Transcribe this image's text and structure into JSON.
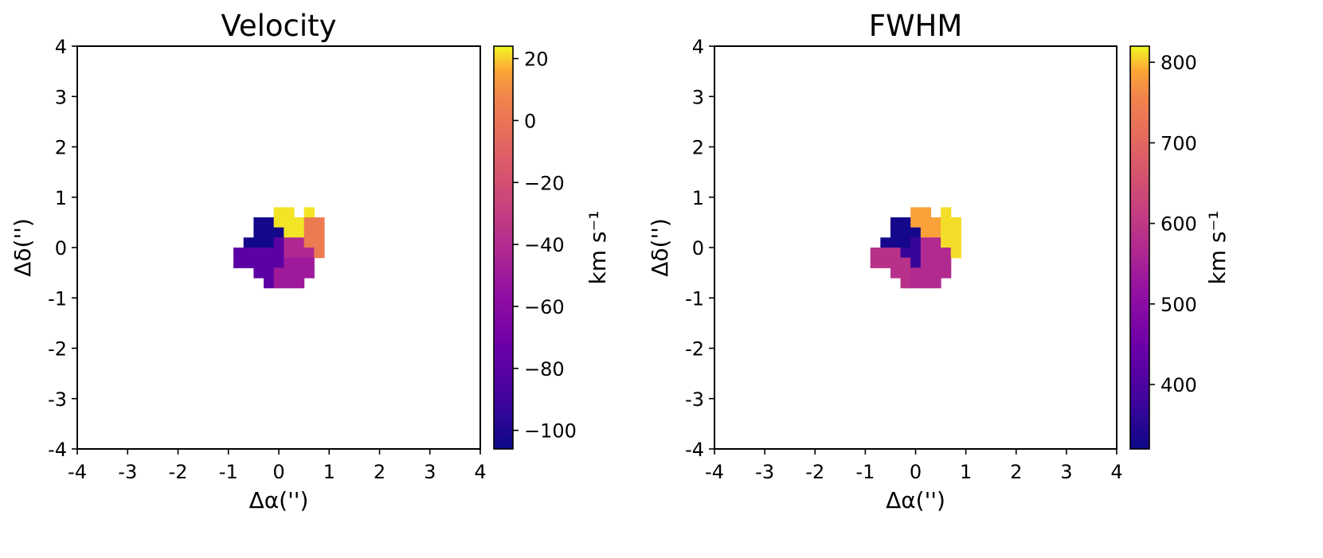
{
  "chart_data": [
    {
      "type": "heatmap",
      "title": "Velocity",
      "xlabel": "Δα('')",
      "ylabel": "Δδ('')",
      "xlim": [
        -4,
        4
      ],
      "ylim": [
        -4,
        4
      ],
      "xticks": [
        "-4",
        "-3",
        "-2",
        "-1",
        "0",
        "1",
        "2",
        "3",
        "4"
      ],
      "yticks": [
        "-4",
        "-3",
        "-2",
        "-1",
        "0",
        "1",
        "2",
        "3",
        "4"
      ],
      "pixel_size": 0.2,
      "colormap": "plasma",
      "colorbar": {
        "label": "km s⁻¹",
        "range": [
          -106,
          24
        ],
        "ticks": [
          "−100",
          "−80",
          "−60",
          "−40",
          "−20",
          "0",
          "20"
        ],
        "tick_values": [
          -100,
          -80,
          -60,
          -40,
          -20,
          0,
          20
        ]
      },
      "cells": [
        {
          "x": 0,
          "y": 0.7,
          "v": 22
        },
        {
          "x": 0.2,
          "y": 0.7,
          "v": 22
        },
        {
          "x": 0.6,
          "y": 0.7,
          "v": 22
        },
        {
          "x": -0.4,
          "y": 0.5,
          "v": -104
        },
        {
          "x": -0.2,
          "y": 0.5,
          "v": -104
        },
        {
          "x": 0,
          "y": 0.5,
          "v": 22
        },
        {
          "x": 0.2,
          "y": 0.5,
          "v": 22
        },
        {
          "x": 0.4,
          "y": 0.5,
          "v": 22
        },
        {
          "x": 0.6,
          "y": 0.5,
          "v": 3
        },
        {
          "x": 0.8,
          "y": 0.5,
          "v": 3
        },
        {
          "x": -0.4,
          "y": 0.3,
          "v": -104
        },
        {
          "x": -0.2,
          "y": 0.3,
          "v": -104
        },
        {
          "x": 0,
          "y": 0.3,
          "v": -104
        },
        {
          "x": 0.2,
          "y": 0.3,
          "v": 22
        },
        {
          "x": 0.4,
          "y": 0.3,
          "v": 22
        },
        {
          "x": 0.6,
          "y": 0.3,
          "v": 3
        },
        {
          "x": 0.8,
          "y": 0.3,
          "v": 3
        },
        {
          "x": -0.6,
          "y": 0.1,
          "v": -104
        },
        {
          "x": -0.4,
          "y": 0.1,
          "v": -104
        },
        {
          "x": -0.2,
          "y": 0.1,
          "v": -104
        },
        {
          "x": 0,
          "y": 0.1,
          "v": -79
        },
        {
          "x": 0.2,
          "y": 0.1,
          "v": -42
        },
        {
          "x": 0.4,
          "y": 0.1,
          "v": -42
        },
        {
          "x": 0.6,
          "y": 0.1,
          "v": 3
        },
        {
          "x": 0.8,
          "y": 0.1,
          "v": 3
        },
        {
          "x": -0.8,
          "y": -0.1,
          "v": -79
        },
        {
          "x": -0.6,
          "y": -0.1,
          "v": -79
        },
        {
          "x": -0.4,
          "y": -0.1,
          "v": -79
        },
        {
          "x": -0.2,
          "y": -0.1,
          "v": -79
        },
        {
          "x": 0,
          "y": -0.1,
          "v": -79
        },
        {
          "x": 0.2,
          "y": -0.1,
          "v": -42
        },
        {
          "x": 0.4,
          "y": -0.1,
          "v": -42
        },
        {
          "x": 0.6,
          "y": -0.1,
          "v": -42
        },
        {
          "x": 0.8,
          "y": -0.1,
          "v": 3
        },
        {
          "x": -0.8,
          "y": -0.3,
          "v": -79
        },
        {
          "x": -0.6,
          "y": -0.3,
          "v": -79
        },
        {
          "x": -0.4,
          "y": -0.3,
          "v": -79
        },
        {
          "x": -0.2,
          "y": -0.3,
          "v": -79
        },
        {
          "x": 0,
          "y": -0.3,
          "v": -79
        },
        {
          "x": 0.2,
          "y": -0.3,
          "v": -50
        },
        {
          "x": 0.4,
          "y": -0.3,
          "v": -50
        },
        {
          "x": 0.6,
          "y": -0.3,
          "v": -50
        },
        {
          "x": -0.4,
          "y": -0.5,
          "v": -79
        },
        {
          "x": -0.2,
          "y": -0.5,
          "v": -79
        },
        {
          "x": 0,
          "y": -0.5,
          "v": -50
        },
        {
          "x": 0.2,
          "y": -0.5,
          "v": -50
        },
        {
          "x": 0.4,
          "y": -0.5,
          "v": -50
        },
        {
          "x": 0.6,
          "y": -0.5,
          "v": -50
        },
        {
          "x": -0.2,
          "y": -0.7,
          "v": -79
        },
        {
          "x": 0,
          "y": -0.7,
          "v": -50
        },
        {
          "x": 0.2,
          "y": -0.7,
          "v": -50
        },
        {
          "x": 0.4,
          "y": -0.7,
          "v": -50
        }
      ]
    },
    {
      "type": "heatmap",
      "title": "FWHM",
      "xlabel": "Δα('')",
      "ylabel": "Δδ('')",
      "xlim": [
        -4,
        4
      ],
      "ylim": [
        -4,
        4
      ],
      "xticks": [
        "-4",
        "-3",
        "-2",
        "-1",
        "0",
        "1",
        "2",
        "3",
        "4"
      ],
      "yticks": [
        "-4",
        "-3",
        "-2",
        "-1",
        "0",
        "1",
        "2",
        "3",
        "4"
      ],
      "pixel_size": 0.2,
      "colormap": "plasma",
      "colorbar": {
        "label": "km s⁻¹",
        "range": [
          320,
          820
        ],
        "ticks": [
          "400",
          "500",
          "600",
          "700",
          "800"
        ],
        "tick_values": [
          400,
          500,
          600,
          700,
          800
        ]
      },
      "cells": [
        {
          "x": 0,
          "y": 0.7,
          "v": 785
        },
        {
          "x": 0.2,
          "y": 0.7,
          "v": 785
        },
        {
          "x": 0.6,
          "y": 0.7,
          "v": 810
        },
        {
          "x": -0.4,
          "y": 0.5,
          "v": 330
        },
        {
          "x": -0.2,
          "y": 0.5,
          "v": 330
        },
        {
          "x": 0,
          "y": 0.5,
          "v": 785
        },
        {
          "x": 0.2,
          "y": 0.5,
          "v": 785
        },
        {
          "x": 0.4,
          "y": 0.5,
          "v": 785
        },
        {
          "x": 0.6,
          "y": 0.5,
          "v": 810
        },
        {
          "x": 0.8,
          "y": 0.5,
          "v": 810
        },
        {
          "x": -0.4,
          "y": 0.3,
          "v": 330
        },
        {
          "x": -0.2,
          "y": 0.3,
          "v": 330
        },
        {
          "x": 0,
          "y": 0.3,
          "v": 330
        },
        {
          "x": 0.2,
          "y": 0.3,
          "v": 785
        },
        {
          "x": 0.4,
          "y": 0.3,
          "v": 785
        },
        {
          "x": 0.6,
          "y": 0.3,
          "v": 810
        },
        {
          "x": 0.8,
          "y": 0.3,
          "v": 810
        },
        {
          "x": -0.6,
          "y": 0.1,
          "v": 330
        },
        {
          "x": -0.4,
          "y": 0.1,
          "v": 330
        },
        {
          "x": -0.2,
          "y": 0.1,
          "v": 330
        },
        {
          "x": 0,
          "y": 0.1,
          "v": 370
        },
        {
          "x": 0.2,
          "y": 0.1,
          "v": 570
        },
        {
          "x": 0.4,
          "y": 0.1,
          "v": 570
        },
        {
          "x": 0.6,
          "y": 0.1,
          "v": 810
        },
        {
          "x": 0.8,
          "y": 0.1,
          "v": 810
        },
        {
          "x": -0.8,
          "y": -0.1,
          "v": 585
        },
        {
          "x": -0.6,
          "y": -0.1,
          "v": 585
        },
        {
          "x": -0.4,
          "y": -0.1,
          "v": 585
        },
        {
          "x": -0.2,
          "y": -0.1,
          "v": 370
        },
        {
          "x": 0,
          "y": -0.1,
          "v": 370
        },
        {
          "x": 0.2,
          "y": -0.1,
          "v": 570
        },
        {
          "x": 0.4,
          "y": -0.1,
          "v": 570
        },
        {
          "x": 0.6,
          "y": -0.1,
          "v": 570
        },
        {
          "x": 0.8,
          "y": -0.1,
          "v": 810
        },
        {
          "x": -0.8,
          "y": -0.3,
          "v": 585
        },
        {
          "x": -0.6,
          "y": -0.3,
          "v": 585
        },
        {
          "x": -0.4,
          "y": -0.3,
          "v": 585
        },
        {
          "x": -0.2,
          "y": -0.3,
          "v": 585
        },
        {
          "x": 0,
          "y": -0.3,
          "v": 370
        },
        {
          "x": 0.2,
          "y": -0.3,
          "v": 570
        },
        {
          "x": 0.4,
          "y": -0.3,
          "v": 570
        },
        {
          "x": 0.6,
          "y": -0.3,
          "v": 570
        },
        {
          "x": -0.4,
          "y": -0.5,
          "v": 585
        },
        {
          "x": -0.2,
          "y": -0.5,
          "v": 585
        },
        {
          "x": 0,
          "y": -0.5,
          "v": 570
        },
        {
          "x": 0.2,
          "y": -0.5,
          "v": 570
        },
        {
          "x": 0.4,
          "y": -0.5,
          "v": 570
        },
        {
          "x": 0.6,
          "y": -0.5,
          "v": 570
        },
        {
          "x": -0.2,
          "y": -0.7,
          "v": 585
        },
        {
          "x": 0,
          "y": -0.7,
          "v": 570
        },
        {
          "x": 0.2,
          "y": -0.7,
          "v": 570
        },
        {
          "x": 0.4,
          "y": -0.7,
          "v": 570
        }
      ]
    }
  ]
}
